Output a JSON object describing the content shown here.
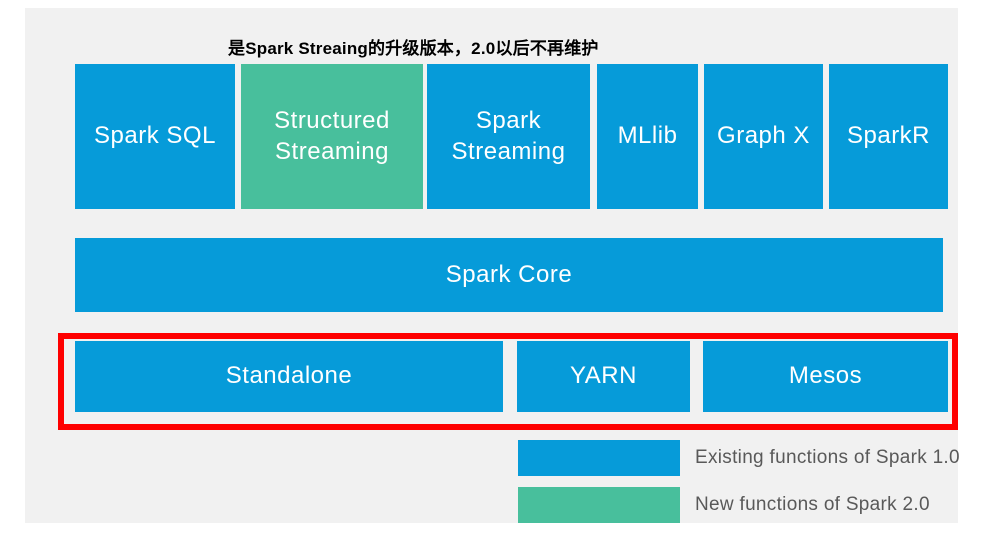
{
  "colors": {
    "spark1_blue": "#069BD9",
    "spark2_green": "#48BF9C",
    "highlight_red": "#FE0000",
    "panel_bg": "#F1F1F1",
    "legend_text": "#595959",
    "box_text": "#FFFFFF"
  },
  "annotation": {
    "text": "是Spark Streaing的升级版本，2.0以后不再维护"
  },
  "top_row": [
    {
      "label": "Spark SQL",
      "version": "spark1"
    },
    {
      "label": "Structured Streaming",
      "version": "spark2"
    },
    {
      "label": "Spark Streaming",
      "version": "spark1"
    },
    {
      "label": "MLlib",
      "version": "spark1"
    },
    {
      "label": "Graph X",
      "version": "spark1"
    },
    {
      "label": "SparkR",
      "version": "spark1"
    }
  ],
  "core_row": {
    "label": "Spark Core"
  },
  "cluster_row": [
    {
      "label": "Standalone"
    },
    {
      "label": "YARN"
    },
    {
      "label": "Mesos"
    }
  ],
  "legend": [
    {
      "label": "Existing functions of Spark 1.0",
      "swatch_color": "#069BD9"
    },
    {
      "label": "New functions of Spark 2.0",
      "swatch_color": "#48BF9C"
    }
  ]
}
